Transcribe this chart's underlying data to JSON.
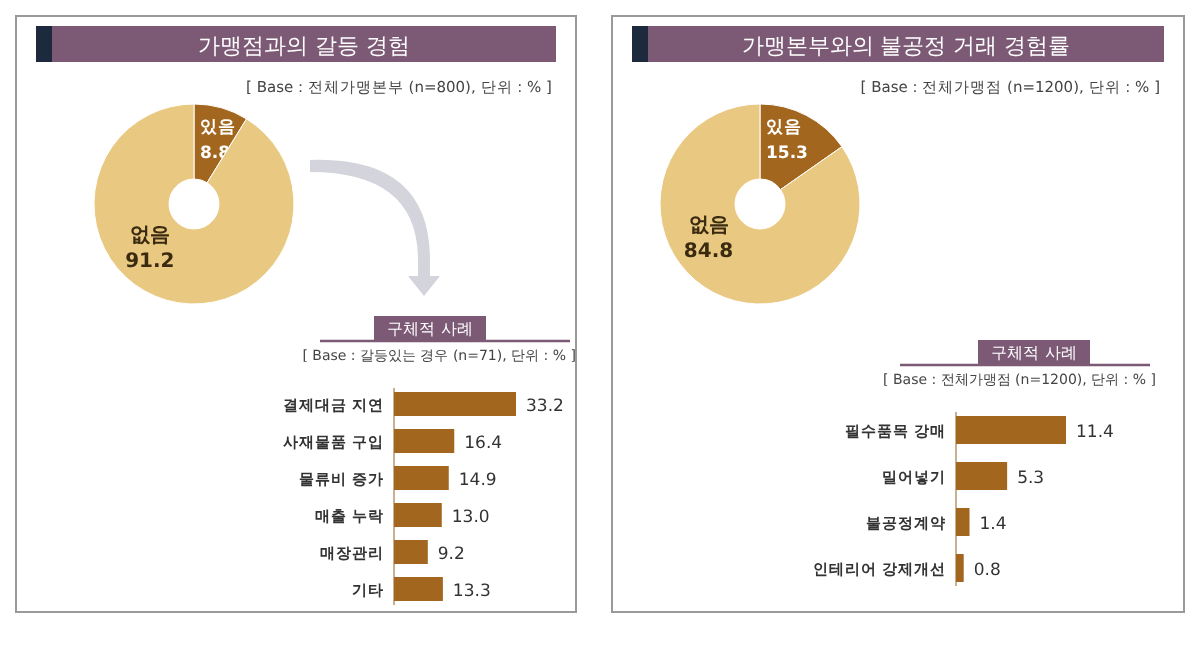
{
  "chart_data": [
    {
      "type": "donut",
      "title": "가맹점과의 갈등 경험",
      "subtitle": "[ Base : 전체가맹본부 (n=800), 단위 : % ]",
      "categories": [
        "있음",
        "없음"
      ],
      "values": [
        8.8,
        91.2
      ],
      "data_labels": true,
      "colors": [
        "#a2661e",
        "#e9c982"
      ]
    },
    {
      "type": "bar",
      "orientation": "horizontal",
      "title": "구체적 사례",
      "subtitle": "[ Base : 갈등있는 경우 (n=71), 단위 : % ]",
      "categories": [
        "결제대금 지연",
        "사재물품 구입",
        "물류비 증가",
        "매출 누락",
        "매장관리",
        "기타"
      ],
      "values": [
        33.2,
        16.4,
        14.9,
        13.0,
        9.2,
        13.3
      ],
      "value_labels": [
        "33.2",
        "16.4",
        "14.9",
        "13.0",
        "9.2",
        "13.3"
      ],
      "color": "#a2661e"
    },
    {
      "type": "donut",
      "title": "가맹본부와의 불공정 거래 경험률",
      "subtitle": "[ Base : 전체가맹점 (n=1200), 단위 : % ]",
      "categories": [
        "있음",
        "없음"
      ],
      "values": [
        15.3,
        84.8
      ],
      "data_labels": true,
      "colors": [
        "#a2661e",
        "#e9c982"
      ]
    },
    {
      "type": "bar",
      "orientation": "horizontal",
      "title": "구체적 사례",
      "subtitle": "[ Base : 전체가맹점 (n=1200), 단위 : % ]",
      "categories": [
        "필수품목 강매",
        "밀어넣기",
        "불공정계약",
        "인테리어 강제개선"
      ],
      "values": [
        11.4,
        5.3,
        1.4,
        0.8
      ],
      "value_labels": [
        "11.4",
        "5.3",
        "1.4",
        "0.8"
      ],
      "color": "#a2661e"
    }
  ]
}
